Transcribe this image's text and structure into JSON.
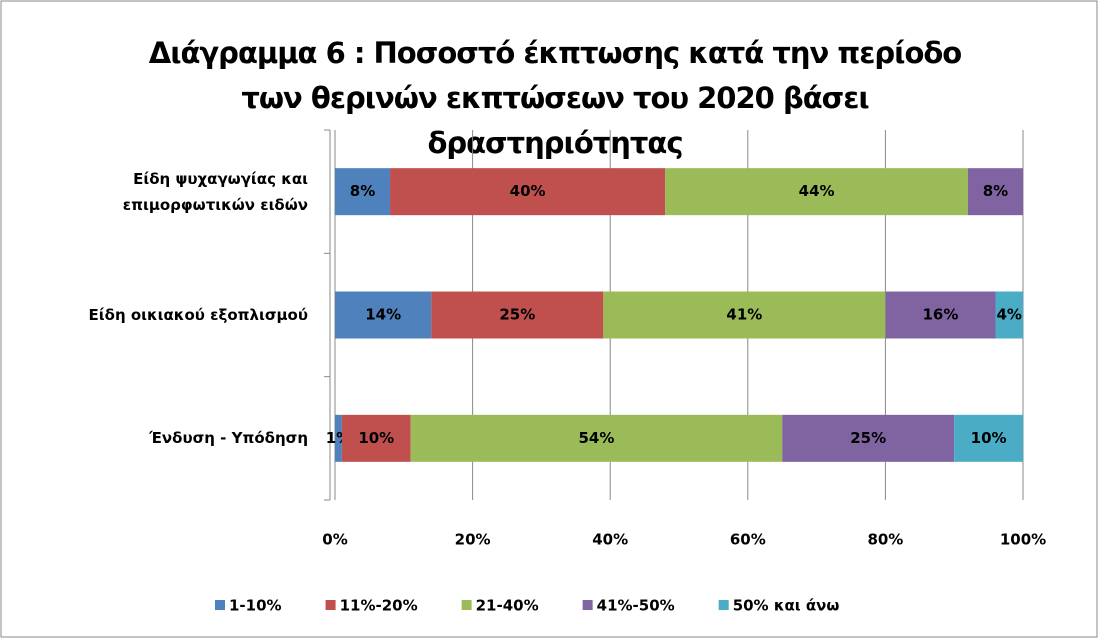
{
  "chart_data": {
    "type": "bar",
    "orientation": "horizontal",
    "stacked": true,
    "title": [
      "Διάγραμμα 6 : Ποσοστό έκπτωσης κατά την περίοδο",
      "των θερινών εκπτώσεων του 2020 βάσει",
      "δραστηριότητας"
    ],
    "categories": [
      "Είδη ψυχαγωγίας και επιμορφωτικών ειδών",
      "Είδη οικιακού εξοπλισμού",
      "Ένδυση - Υπόδηση"
    ],
    "series": [
      {
        "name": "1-10%",
        "color": "#4f81bd",
        "values": [
          8,
          14,
          1
        ],
        "value_labels": [
          "8%",
          "14%",
          "1%"
        ]
      },
      {
        "name": "11%-20%",
        "color": "#c0504d",
        "values": [
          40,
          25,
          10
        ],
        "value_labels": [
          "40%",
          "25%",
          "10%"
        ]
      },
      {
        "name": "21-40%",
        "color": "#9bbb59",
        "values": [
          44,
          41,
          54
        ],
        "value_labels": [
          "44%",
          "41%",
          "54%"
        ]
      },
      {
        "name": "41%-50%",
        "color": "#8064a2",
        "values": [
          8,
          16,
          25
        ],
        "value_labels": [
          "8%",
          "16%",
          "25%"
        ]
      },
      {
        "name": "50% και άνω",
        "color": "#4bacc6",
        "values": [
          0,
          4,
          10
        ],
        "value_labels": [
          null,
          "4%",
          "10%"
        ]
      }
    ],
    "xlim": [
      0,
      100
    ],
    "xticks": [
      {
        "value": 0,
        "label": "0%"
      },
      {
        "value": 20,
        "label": "20%"
      },
      {
        "value": 40,
        "label": "40%"
      },
      {
        "value": 60,
        "label": "60%"
      },
      {
        "value": 80,
        "label": "80%"
      },
      {
        "value": 100,
        "label": "100%"
      }
    ],
    "grid": true,
    "legend": "bottom"
  }
}
